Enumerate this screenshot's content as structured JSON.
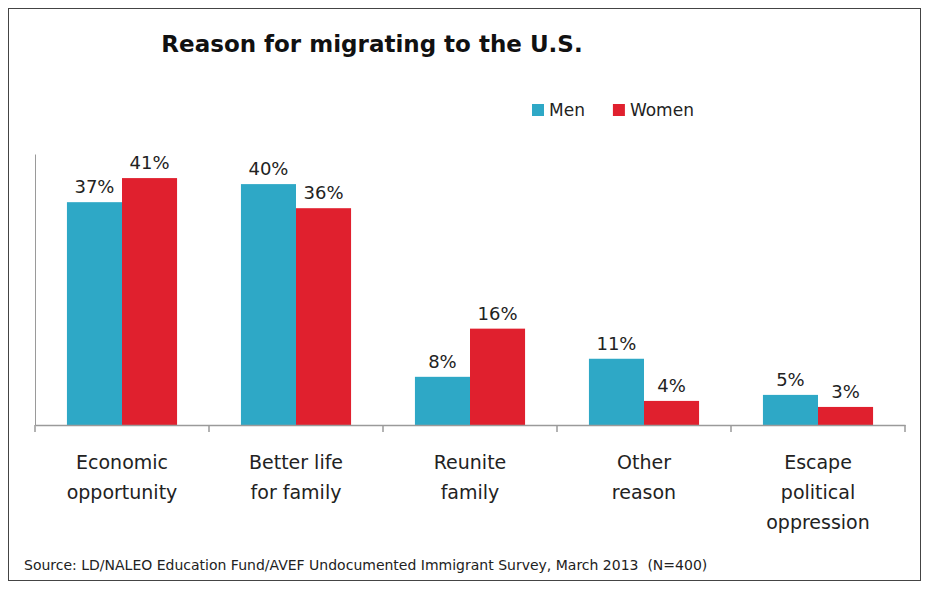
{
  "chart_data": {
    "type": "bar",
    "title": "Reason for migrating to the U.S.",
    "source": "Source: LD/NALEO Education Fund/AVEF Undocumented Immigrant Survey, March 2013  (N=400)",
    "categories": [
      "Economic\nopportunity",
      "Better life\nfor family",
      "Reunite\nfamily",
      "Other\nreason",
      "Escape\npolitical\noppression"
    ],
    "series": [
      {
        "name": "Men",
        "color": "#2EA8C6",
        "values": [
          37,
          40,
          8,
          11,
          5
        ],
        "value_labels": [
          "37%",
          "40%",
          "8%",
          "11%",
          "5%"
        ]
      },
      {
        "name": "Women",
        "color": "#E0202E",
        "values": [
          41,
          36,
          16,
          4,
          3
        ],
        "value_labels": [
          "41%",
          "36%",
          "16%",
          "4%",
          "3%"
        ]
      }
    ],
    "ylim": [
      0,
      45
    ],
    "data_labels": true,
    "legend": "top",
    "tick_labels": "x"
  }
}
